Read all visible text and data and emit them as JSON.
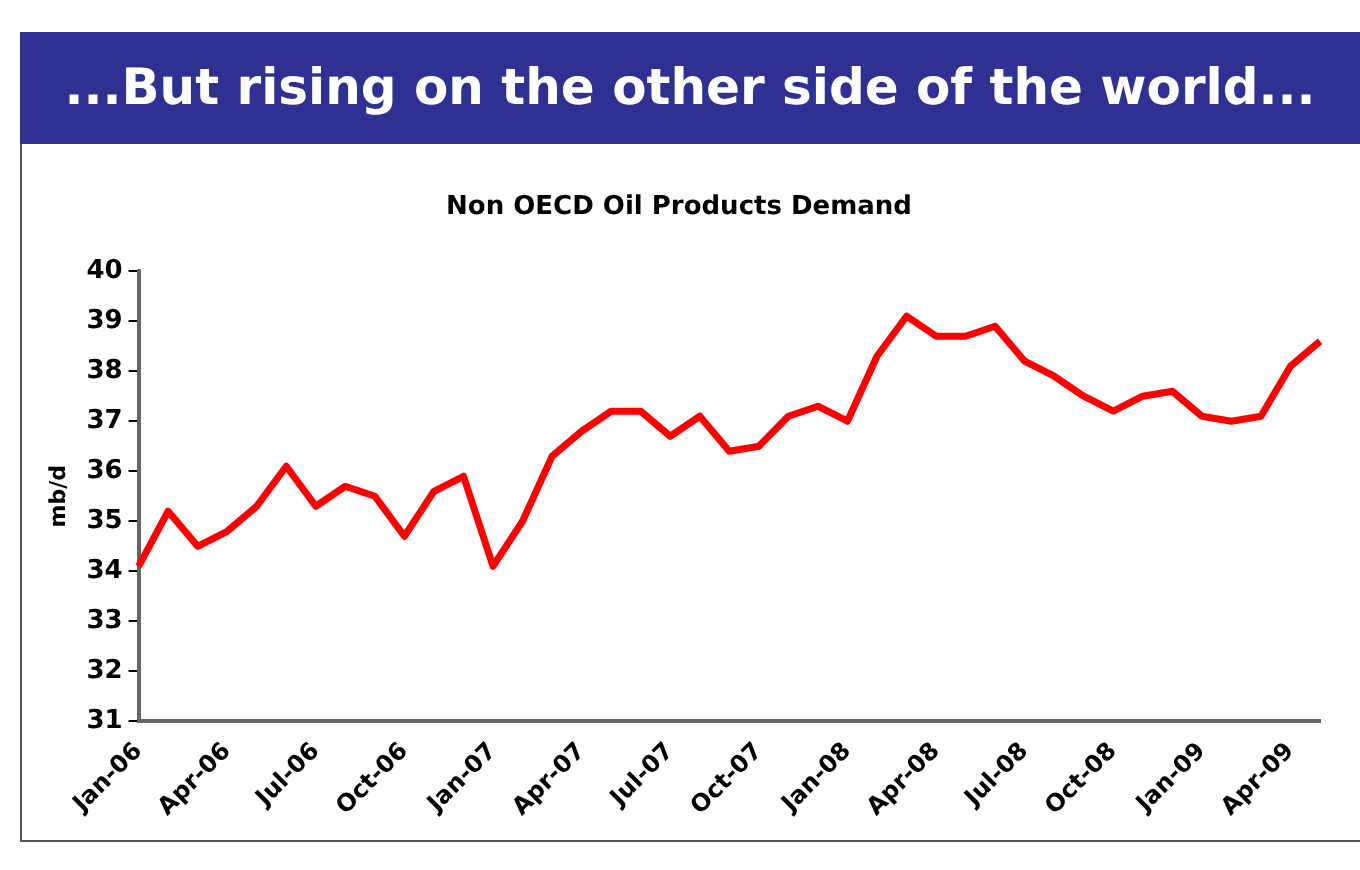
{
  "chart_data": {
    "type": "line",
    "title": "...But rising on the other side of the world...",
    "subtitle": "Non OECD Oil Products Demand",
    "ylabel": "mb/d",
    "categories": [
      "Jan-06",
      null,
      null,
      "Apr-06",
      null,
      null,
      "Jul-06",
      null,
      null,
      "Oct-06",
      null,
      null,
      "Jan-07",
      null,
      null,
      "Apr-07",
      null,
      null,
      "Jul-07",
      null,
      null,
      "Oct-07",
      null,
      null,
      "Jan-08",
      null,
      null,
      "Apr-08",
      null,
      null,
      "Jul-08",
      null,
      null,
      "Oct-08",
      null,
      null,
      "Jan-09",
      null,
      null,
      "Apr-09",
      null
    ],
    "series": [
      {
        "color": "#ff0000",
        "values": [
          34.1,
          35.2,
          34.5,
          34.8,
          35.3,
          36.1,
          35.3,
          35.7,
          35.5,
          34.7,
          35.6,
          35.9,
          34.1,
          35.0,
          36.3,
          36.8,
          37.2,
          37.2,
          36.7,
          37.1,
          36.4,
          36.5,
          37.1,
          37.3,
          37.0,
          38.3,
          39.1,
          38.7,
          38.7,
          38.9,
          38.2,
          37.9,
          37.5,
          37.2,
          37.5,
          37.6,
          37.1,
          37.0,
          37.1,
          38.1,
          38.6
        ]
      }
    ],
    "ylim": [
      31,
      40
    ],
    "yticks": [
      31,
      32,
      33,
      34,
      35,
      36,
      37,
      38,
      39,
      40
    ],
    "grid": false,
    "legend": false,
    "marker": "none",
    "line_style": "solid"
  }
}
